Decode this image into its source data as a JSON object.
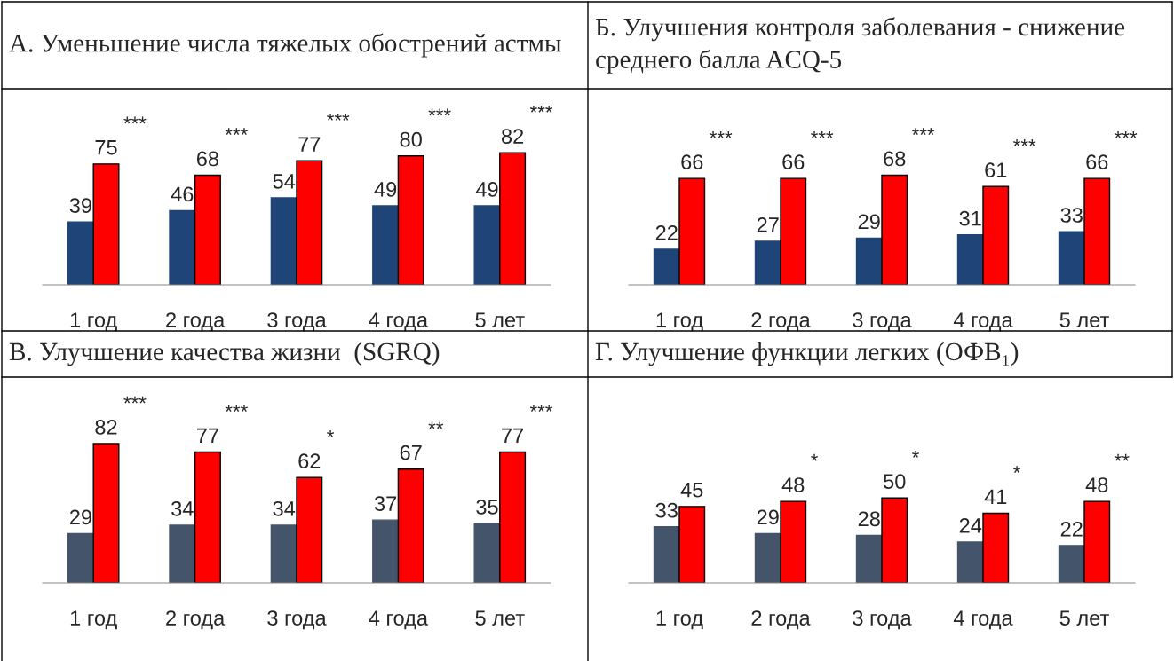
{
  "chart_data": [
    {
      "type": "bar",
      "title": "А. Уменьшение числа тяжелых обострений астмы",
      "categories": [
        "1 год",
        "2 года",
        "3 года",
        "4 года",
        "5 лет"
      ],
      "data_labels": true,
      "series": [
        {
          "color": "#1f4477",
          "values": [
            39,
            46,
            54,
            49,
            49
          ]
        },
        {
          "color": "#ff0000",
          "values": [
            75,
            68,
            77,
            80,
            82
          ]
        }
      ],
      "annotations": [
        {
          "text": "***",
          "x": "1 год",
          "y": 75
        },
        {
          "text": "***",
          "x": "2 года",
          "y": 68
        },
        {
          "text": "***",
          "x": "3 года",
          "y": 77
        },
        {
          "text": "***",
          "x": "4 года",
          "y": 80
        },
        {
          "text": "***",
          "x": "5 лет",
          "y": 82
        }
      ]
    },
    {
      "type": "bar",
      "title": "Б. Улучшения контроля заболевания - снижение среднего балла ACQ-5",
      "categories": [
        "1 год",
        "2 года",
        "3 года",
        "4 года",
        "5 лет"
      ],
      "data_labels": true,
      "series": [
        {
          "color": "#1f4477",
          "values": [
            22,
            27,
            29,
            31,
            33
          ]
        },
        {
          "color": "#ff0000",
          "values": [
            66,
            66,
            68,
            61,
            66
          ]
        }
      ],
      "annotations": [
        {
          "text": "***",
          "x": "1 год",
          "y": 66
        },
        {
          "text": "***",
          "x": "2 года",
          "y": 66
        },
        {
          "text": "***",
          "x": "3 года",
          "y": 68
        },
        {
          "text": "***",
          "x": "4 года",
          "y": 61
        },
        {
          "text": "***",
          "x": "5 лет",
          "y": 66
        }
      ]
    },
    {
      "type": "bar",
      "title": "В. Улучшение качества жизни  (SGRQ)",
      "categories": [
        "1 год",
        "2 года",
        "3 года",
        "4 года",
        "5 лет"
      ],
      "data_labels": true,
      "series": [
        {
          "color": "#44546a",
          "values": [
            29,
            34,
            34,
            37,
            35
          ]
        },
        {
          "color": "#ff0000",
          "values": [
            82,
            77,
            62,
            67,
            77
          ]
        }
      ],
      "annotations": [
        {
          "text": "***",
          "x": "1 год",
          "y": 82
        },
        {
          "text": "***",
          "x": "2 года",
          "y": 77
        },
        {
          "text": "*",
          "x": "3 года",
          "y": 62
        },
        {
          "text": "**",
          "x": "4 года",
          "y": 67
        },
        {
          "text": "***",
          "x": "5 лет",
          "y": 77
        }
      ]
    },
    {
      "type": "bar",
      "title": "Г. Улучшение функции легких (ОФВ₁)",
      "categories": [
        "1 год",
        "2 года",
        "3 года",
        "4 года",
        "5 лет"
      ],
      "data_labels": true,
      "series": [
        {
          "color": "#44546a",
          "values": [
            33,
            29,
            28,
            24,
            22
          ]
        },
        {
          "color": "#ff0000",
          "values": [
            45,
            48,
            50,
            41,
            48
          ]
        }
      ],
      "annotations": [
        {
          "text": "*",
          "x": "2 года",
          "y": 48
        },
        {
          "text": "*",
          "x": "3 года",
          "y": 50
        },
        {
          "text": "*",
          "x": "4 года",
          "y": 41
        },
        {
          "text": "**",
          "x": "5 лет",
          "y": 48
        }
      ]
    }
  ]
}
